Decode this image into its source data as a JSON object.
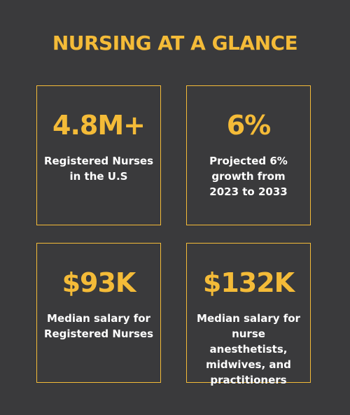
{
  "title": "NURSING AT A GLANCE",
  "colors": {
    "background": "#3a3a3c",
    "accent": "#f4bb38",
    "text": "#ffffff"
  },
  "stats": [
    {
      "value": "4.8M+",
      "label": "Registered Nurses\nin the U.S"
    },
    {
      "value": "6%",
      "label": "Projected 6%\ngrowth from\n2023 to 2033"
    },
    {
      "value": "$93K",
      "label": "Median salary for\nRegistered Nurses"
    },
    {
      "value": "$132K",
      "label": "Median salary for\nnurse anesthetists,\nmidwives, and\npractitioners"
    }
  ]
}
